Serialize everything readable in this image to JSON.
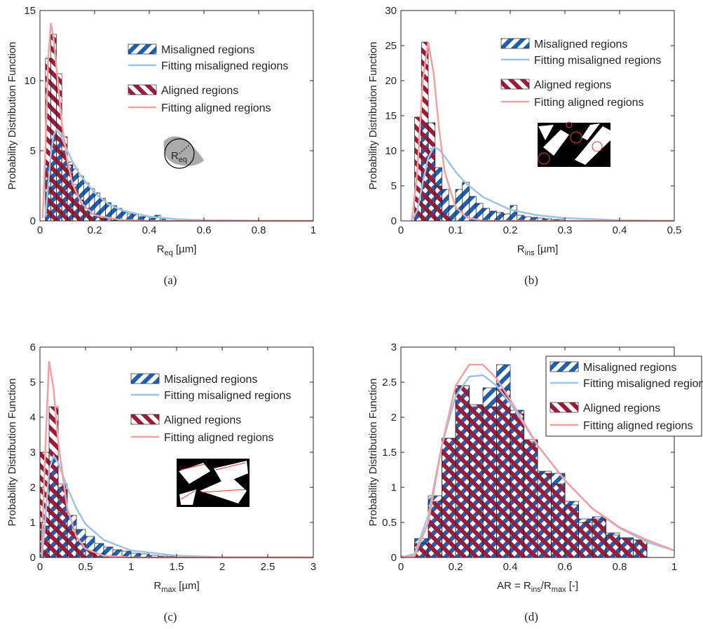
{
  "chart_data": [
    {
      "type": "histogram",
      "caption": "(a)",
      "ylabel": "Probability Distribution Function",
      "xlabel": [
        "R",
        "eq",
        " [µm]"
      ],
      "inset_label": [
        "R",
        "eq"
      ],
      "xlim": [
        0,
        1
      ],
      "xticks": [
        0,
        0.2,
        0.4,
        0.6,
        0.8,
        1
      ],
      "ylim": [
        0,
        15
      ],
      "yticks": [
        0,
        5,
        10,
        15
      ],
      "legend": "upper center",
      "bins": [
        0.02,
        0.04,
        0.06,
        0.08,
        0.1,
        0.12,
        0.14,
        0.16,
        0.18,
        0.2,
        0.22,
        0.24,
        0.26,
        0.28,
        0.3,
        0.32,
        0.34,
        0.36,
        0.38,
        0.4,
        0.42,
        0.44,
        0.46
      ],
      "series": [
        {
          "name": "Misaligned regions",
          "color": "#1f5fae",
          "values": [
            4.0,
            6.2,
            5.9,
            5.0,
            4.2,
            3.7,
            3.2,
            2.7,
            2.3,
            2.0,
            1.6,
            1.3,
            1.1,
            0.9,
            0.7,
            0.5,
            0.45,
            0.3,
            0.3,
            0.25,
            0.4,
            0.2
          ]
        },
        {
          "name": "Aligned regions",
          "color": "#9b1b3a",
          "values": [
            11.6,
            13.3,
            10.5,
            6.0,
            4.0,
            2.6,
            1.5,
            0.9,
            0.5,
            0.3,
            0.2,
            0.1,
            0.05,
            0,
            0,
            0,
            0,
            0,
            0,
            0,
            0,
            0
          ]
        }
      ],
      "fits": [
        {
          "name": "Fitting misaligned regions",
          "color": "#9dc3e6",
          "x": [
            0.02,
            0.03,
            0.04,
            0.05,
            0.06,
            0.07,
            0.08,
            0.1,
            0.12,
            0.15,
            0.2,
            0.25,
            0.3,
            0.4,
            0.5,
            0.6,
            0.8,
            1
          ],
          "values": [
            0.3,
            2.5,
            4.8,
            6.1,
            6.5,
            6.3,
            5.9,
            5.0,
            4.2,
            3.2,
            2.0,
            1.2,
            0.75,
            0.3,
            0.12,
            0.05,
            0.01,
            0
          ]
        },
        {
          "name": "Fitting aligned regions",
          "color": "#f4a0a0",
          "x": [
            0.01,
            0.02,
            0.03,
            0.04,
            0.05,
            0.06,
            0.08,
            0.1,
            0.12,
            0.15,
            0.2,
            0.3,
            0.4,
            0.6,
            1
          ],
          "values": [
            0.2,
            5,
            11.5,
            14.1,
            13,
            11,
            7,
            4.3,
            2.6,
            1.3,
            0.4,
            0.05,
            0,
            0,
            0
          ]
        }
      ]
    },
    {
      "type": "histogram",
      "caption": "(b)",
      "ylabel": "Probability Distribution Function",
      "xlabel": [
        "R",
        "ins",
        " [µm]"
      ],
      "xlim": [
        0,
        0.5
      ],
      "xticks": [
        0,
        0.1,
        0.2,
        0.3,
        0.4,
        0.5
      ],
      "ylim": [
        0,
        30
      ],
      "yticks": [
        0,
        5,
        10,
        15,
        20,
        25,
        30
      ],
      "legend": "upper center",
      "bins": [
        0.025,
        0.0375,
        0.05,
        0.0625,
        0.075,
        0.0875,
        0.1,
        0.1125,
        0.125,
        0.1375,
        0.15,
        0.1625,
        0.175,
        0.1875,
        0.2,
        0.2125,
        0.225,
        0.2375,
        0.25,
        0.2625,
        0.275,
        0.2875,
        0.3
      ],
      "series": [
        {
          "name": "Misaligned regions",
          "color": "#1f5fae",
          "values": [
            1,
            14,
            10.3,
            7.6,
            4.5,
            2.2,
            4.5,
            5.5,
            3.5,
            2.5,
            1.8,
            1.4,
            1.2,
            1.0,
            2.2,
            0.8,
            0.6,
            0.5,
            0.4,
            0.3,
            0.2,
            0.2
          ]
        },
        {
          "name": "Aligned regions",
          "color": "#9b1b3a",
          "values": [
            14.8,
            25.5,
            14,
            5,
            1,
            0.3,
            0,
            0,
            0,
            0,
            0,
            0,
            0,
            0,
            0,
            0,
            0,
            0,
            0,
            0,
            0,
            0
          ]
        }
      ],
      "fits": [
        {
          "name": "Fitting misaligned regions",
          "color": "#9dc3e6",
          "x": [
            0.02,
            0.03,
            0.04,
            0.05,
            0.06,
            0.07,
            0.08,
            0.1,
            0.12,
            0.15,
            0.2,
            0.25,
            0.3,
            0.4,
            0.5
          ],
          "values": [
            0,
            1.5,
            5.5,
            9,
            10.5,
            10.2,
            9.2,
            7,
            5.3,
            3.4,
            1.6,
            0.8,
            0.4,
            0.1,
            0
          ]
        },
        {
          "name": "Fitting aligned regions",
          "color": "#f4a0a0",
          "x": [
            0.02,
            0.03,
            0.04,
            0.05,
            0.06,
            0.07,
            0.08,
            0.1,
            0.12,
            0.15,
            0.2,
            0.3,
            0.5
          ],
          "values": [
            0,
            7,
            20,
            25.5,
            21,
            13,
            7,
            2,
            0.5,
            0,
            0,
            0,
            0
          ]
        }
      ]
    },
    {
      "type": "histogram",
      "caption": "(c)",
      "ylabel": "Probability Distribution Function",
      "xlabel": [
        "R",
        "max",
        " [µm]"
      ],
      "xlim": [
        0,
        3
      ],
      "xticks": [
        0,
        0.5,
        1,
        1.5,
        2,
        2.5,
        3
      ],
      "ylim": [
        0,
        6
      ],
      "yticks": [
        0,
        1,
        2,
        3,
        4,
        5,
        6
      ],
      "legend": "upper center",
      "bins": [
        0,
        0.1,
        0.2,
        0.3,
        0.4,
        0.5,
        0.6,
        0.7,
        0.8,
        0.9,
        1.0,
        1.1,
        1.2,
        1.3,
        1.4,
        1.5
      ],
      "series": [
        {
          "name": "Misaligned regions",
          "color": "#1f5fae",
          "values": [
            0.9,
            2.9,
            2.1,
            1.2,
            0.8,
            0.6,
            0.4,
            0.3,
            0.22,
            0.18,
            0.12,
            0.1,
            0.06,
            0.04,
            0.03
          ]
        },
        {
          "name": "Aligned regions",
          "color": "#9b1b3a",
          "values": [
            3.0,
            4.3,
            2.0,
            0.8,
            0.4,
            0.2,
            0.1,
            0.05,
            0,
            0,
            0,
            0,
            0,
            0,
            0
          ]
        }
      ],
      "fits": [
        {
          "name": "Fitting misaligned regions",
          "color": "#9dc3e6",
          "x": [
            0.02,
            0.05,
            0.1,
            0.15,
            0.2,
            0.3,
            0.4,
            0.5,
            0.7,
            1,
            1.5,
            2,
            3
          ],
          "values": [
            0,
            0.8,
            2.5,
            2.9,
            2.7,
            2.0,
            1.4,
            0.95,
            0.5,
            0.2,
            0.05,
            0.01,
            0
          ]
        },
        {
          "name": "Fitting aligned regions",
          "color": "#f4a0a0",
          "x": [
            0.02,
            0.05,
            0.1,
            0.15,
            0.2,
            0.3,
            0.4,
            0.5,
            0.7,
            1,
            1.5,
            3
          ],
          "values": [
            0.1,
            2.5,
            5.6,
            4.8,
            3.3,
            1.4,
            0.6,
            0.25,
            0.05,
            0,
            0,
            0
          ]
        }
      ]
    },
    {
      "type": "histogram",
      "caption": "(d)",
      "ylabel": "Probability Distribution Function",
      "xlabel": [
        "AR = R",
        "ins",
        "/R",
        "max",
        " [-]"
      ],
      "xlim": [
        0,
        1
      ],
      "xticks": [
        0,
        0.2,
        0.4,
        0.6,
        0.8,
        1
      ],
      "ylim": [
        0,
        3
      ],
      "yticks": [
        0,
        0.5,
        1,
        1.5,
        2,
        2.5,
        3
      ],
      "legend": "upper right",
      "bins": [
        0,
        0.05,
        0.1,
        0.15,
        0.2,
        0.25,
        0.3,
        0.35,
        0.4,
        0.45,
        0.5,
        0.55,
        0.6,
        0.65,
        0.7,
        0.75,
        0.8,
        0.85,
        0.9
      ],
      "series": [
        {
          "name": "Misaligned regions",
          "color": "#1f5fae",
          "values": [
            0.02,
            0.27,
            0.88,
            1.7,
            2.45,
            2.15,
            2.42,
            2.75,
            2.1,
            1.65,
            1.23,
            1.2,
            0.8,
            0.55,
            0.58,
            0.35,
            0.28,
            0.25
          ]
        },
        {
          "name": "Aligned regions",
          "color": "#9b1b3a",
          "values": [
            0,
            0.2,
            0.8,
            1.7,
            2.45,
            2.18,
            2.15,
            2.4,
            2.05,
            1.68,
            1.2,
            1.05,
            0.75,
            0.5,
            0.55,
            0.32,
            0.28,
            0.25
          ]
        }
      ],
      "fits": [
        {
          "name": "Fitting misaligned regions",
          "color": "#9dc3e6",
          "x": [
            0,
            0.05,
            0.1,
            0.15,
            0.2,
            0.25,
            0.3,
            0.35,
            0.4,
            0.5,
            0.6,
            0.7,
            0.8,
            0.9,
            1
          ],
          "values": [
            0,
            0.05,
            0.6,
            1.6,
            2.3,
            2.58,
            2.6,
            2.45,
            2.2,
            1.6,
            1.1,
            0.7,
            0.42,
            0.22,
            0.1
          ]
        },
        {
          "name": "Fitting aligned regions",
          "color": "#f4a0a0",
          "x": [
            0,
            0.05,
            0.1,
            0.15,
            0.2,
            0.25,
            0.3,
            0.35,
            0.4,
            0.5,
            0.6,
            0.7,
            0.8,
            0.9,
            1
          ],
          "values": [
            0,
            0.02,
            0.5,
            1.6,
            2.45,
            2.75,
            2.75,
            2.55,
            2.25,
            1.6,
            1.1,
            0.7,
            0.43,
            0.25,
            0.1
          ]
        }
      ]
    }
  ]
}
